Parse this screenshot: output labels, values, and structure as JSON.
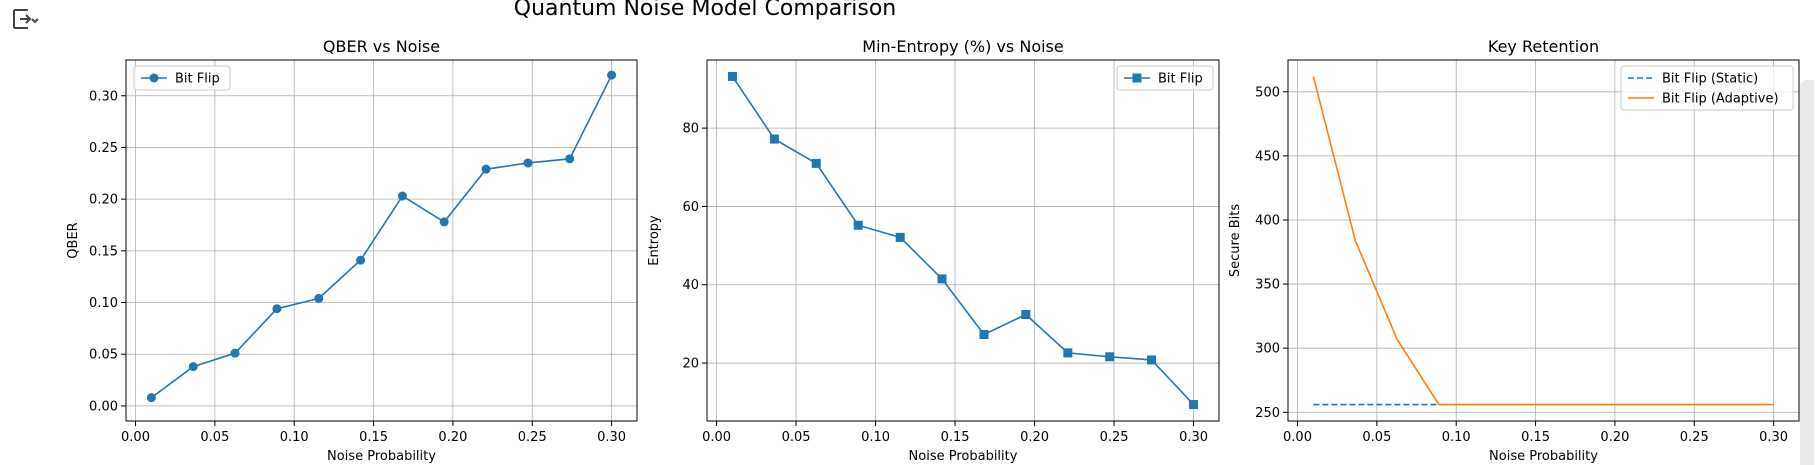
{
  "figure": {
    "suptitle": "Quantum Noise Model Comparison"
  },
  "toolbar": {
    "icon": "expand-collapse-icon"
  },
  "colors": {
    "blue": "#1f77b4",
    "orange": "#ff7f0e",
    "grid": "#b0b0b0"
  },
  "chart_data": [
    {
      "type": "line",
      "title": "QBER vs Noise",
      "xlabel": "Noise Probability",
      "ylabel": "QBER",
      "xlim": [
        -0.006,
        0.316
      ],
      "ylim": [
        -0.0146,
        0.3346
      ],
      "xticks": [
        0.0,
        0.05,
        0.1,
        0.15,
        0.2,
        0.25,
        0.3
      ],
      "xtick_labels": [
        "0.00",
        "0.05",
        "0.10",
        "0.15",
        "0.20",
        "0.25",
        "0.30"
      ],
      "yticks": [
        0.0,
        0.05,
        0.1,
        0.15,
        0.2,
        0.25,
        0.3
      ],
      "ytick_labels": [
        "0.00",
        "0.05",
        "0.10",
        "0.15",
        "0.20",
        "0.25",
        "0.30"
      ],
      "grid": true,
      "legend_loc": "upper left",
      "x": [
        0.01,
        0.0364,
        0.0627,
        0.0891,
        0.1155,
        0.1418,
        0.1682,
        0.1945,
        0.2209,
        0.2473,
        0.2736,
        0.3
      ],
      "series": [
        {
          "name": "Bit Flip",
          "marker": "circle",
          "style": "solid",
          "color": "#1f77b4",
          "values": [
            0.008,
            0.038,
            0.051,
            0.094,
            0.104,
            0.141,
            0.203,
            0.178,
            0.229,
            0.235,
            0.239,
            0.32
          ]
        }
      ]
    },
    {
      "type": "line",
      "title": "Min-Entropy (%) vs Noise",
      "xlabel": "Noise Probability",
      "ylabel": "Entropy",
      "xlim": [
        -0.006,
        0.316
      ],
      "ylim": [
        5.2,
        97.4
      ],
      "xticks": [
        0.0,
        0.05,
        0.1,
        0.15,
        0.2,
        0.25,
        0.3
      ],
      "xtick_labels": [
        "0.00",
        "0.05",
        "0.10",
        "0.15",
        "0.20",
        "0.25",
        "0.30"
      ],
      "yticks": [
        20,
        40,
        60,
        80
      ],
      "ytick_labels": [
        "20",
        "40",
        "60",
        "80"
      ],
      "grid": true,
      "legend_loc": "upper right",
      "x": [
        0.01,
        0.0364,
        0.0627,
        0.0891,
        0.1155,
        0.1418,
        0.1682,
        0.1945,
        0.2209,
        0.2473,
        0.2736,
        0.3
      ],
      "series": [
        {
          "name": "Bit Flip",
          "marker": "square",
          "style": "solid",
          "color": "#1f77b4",
          "values": [
            93.2,
            77.2,
            71.0,
            55.2,
            52.1,
            41.5,
            27.3,
            32.4,
            22.6,
            21.6,
            20.8,
            9.4
          ]
        }
      ]
    },
    {
      "type": "line",
      "title": "Key Retention",
      "xlabel": "Noise Probability",
      "ylabel": "Secure Bits",
      "xlim": [
        -0.006,
        0.316
      ],
      "ylim": [
        243.2,
        524.8
      ],
      "xticks": [
        0.0,
        0.05,
        0.1,
        0.15,
        0.2,
        0.25,
        0.3
      ],
      "xtick_labels": [
        "0.00",
        "0.05",
        "0.10",
        "0.15",
        "0.20",
        "0.25",
        "0.30"
      ],
      "yticks": [
        250,
        300,
        350,
        400,
        450,
        500
      ],
      "ytick_labels": [
        "250",
        "300",
        "350",
        "400",
        "450",
        "500"
      ],
      "grid": true,
      "legend_loc": "upper right",
      "series": [
        {
          "name": "Bit Flip (Static)",
          "marker": "none",
          "style": "dashed",
          "color": "#1f77b4",
          "x": [
            0.01,
            0.0891
          ],
          "values": [
            256,
            256
          ]
        },
        {
          "name": "Bit Flip (Adaptive)",
          "marker": "none",
          "style": "solid",
          "color": "#ff7f0e",
          "x": [
            0.01,
            0.0364,
            0.0627,
            0.0891,
            0.1155,
            0.1418,
            0.1682,
            0.1945,
            0.2209,
            0.2473,
            0.2736,
            0.3
          ],
          "values": [
            512,
            384,
            307,
            256,
            256,
            256,
            256,
            256,
            256,
            256,
            256,
            256
          ]
        }
      ]
    }
  ]
}
